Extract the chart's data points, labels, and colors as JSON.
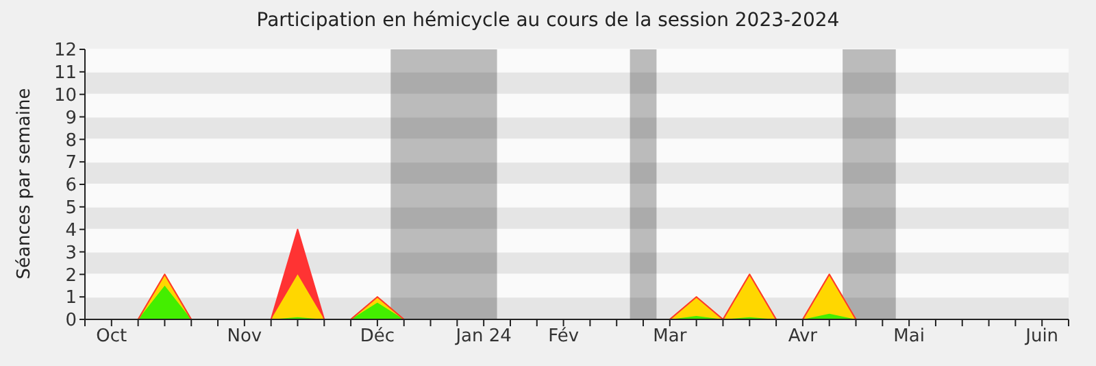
{
  "chart_data": {
    "type": "area",
    "title": "Participation en hémicycle au cours de la session 2023-2024",
    "ylabel": "Séances par semaine",
    "stacked": true,
    "grid": "y",
    "legend": false,
    "marker": "none",
    "categories": [
      null,
      "Oct",
      null,
      null,
      null,
      null,
      "Nov",
      null,
      null,
      null,
      null,
      "Déc",
      null,
      null,
      null,
      "Jan 24",
      null,
      null,
      "Fév",
      null,
      null,
      null,
      "Mar",
      null,
      null,
      null,
      null,
      "Avr",
      null,
      null,
      null,
      "Mai",
      null,
      null,
      null,
      null,
      "Juin",
      null
    ],
    "series": [
      {
        "color": "#44ee00",
        "values": [
          0,
          0,
          0,
          1.5,
          0,
          0,
          0,
          0,
          0.1,
          0,
          0,
          0.75,
          0,
          0,
          0,
          0,
          0,
          0,
          0,
          0,
          0,
          0,
          0,
          0.15,
          0,
          0.1,
          0,
          0,
          0.25,
          0,
          0,
          0,
          0,
          0,
          0,
          0,
          0,
          0
        ]
      },
      {
        "color": "#ffd700",
        "values": [
          0,
          0,
          0,
          0.5,
          0,
          0,
          0,
          0,
          1.9,
          0,
          0,
          0.25,
          0,
          0,
          0,
          0,
          0,
          0,
          0,
          0,
          0,
          0,
          0,
          0.85,
          0,
          1.9,
          0,
          0,
          1.75,
          0,
          0,
          0,
          0,
          0,
          0,
          0,
          0,
          0
        ]
      },
      {
        "color": "#ff3333",
        "values": [
          0,
          0,
          0,
          0,
          0,
          0,
          0,
          0,
          2,
          0,
          0,
          0,
          0,
          0,
          0,
          0,
          0,
          0,
          0,
          0,
          0,
          0,
          0,
          0,
          0,
          0,
          0,
          0,
          0,
          0,
          0,
          0,
          0,
          0,
          0,
          0,
          0,
          0
        ]
      }
    ],
    "ylim": [
      0,
      12
    ],
    "yticks": [
      0,
      1,
      2,
      3,
      4,
      5,
      6,
      7,
      8,
      9,
      10,
      11,
      12
    ]
  }
}
